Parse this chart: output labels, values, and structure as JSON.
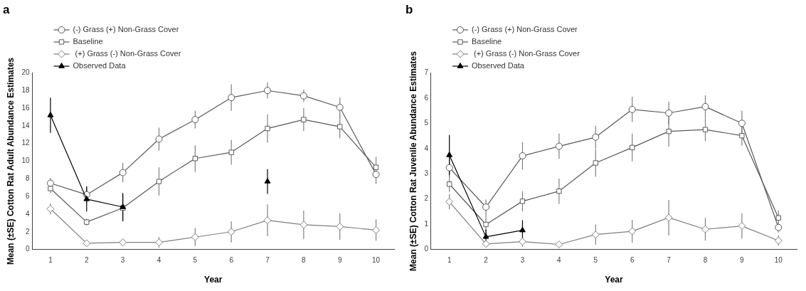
{
  "chart_data": [
    {
      "type": "line",
      "title": "a",
      "xlabel": "Year",
      "ylabel": "Mean (±SE) Cotton Rat Adult Abundance Estimates",
      "categories": [
        "1",
        "2",
        "3",
        "4",
        "5",
        "6",
        "7",
        "8",
        "9",
        "10"
      ],
      "ylim": [
        0,
        20
      ],
      "yticks": [
        0,
        2,
        4,
        6,
        8,
        10,
        12,
        14,
        16,
        18,
        20
      ],
      "grid": false,
      "legend": "top left",
      "series": [
        {
          "name": "(-) Grass (+) Non-Grass Cover",
          "color": "#595959",
          "marker": "circle",
          "values": [
            7.5,
            6.2,
            8.7,
            12.5,
            14.7,
            17.2,
            18.0,
            17.4,
            16.1,
            8.5
          ],
          "errors": [
            0.6,
            1.0,
            1.1,
            1.3,
            1.0,
            1.5,
            0.9,
            0.7,
            1.1,
            1.1
          ]
        },
        {
          "name": "Baseline",
          "color": "#595959",
          "marker": "square",
          "values": [
            6.9,
            3.1,
            4.7,
            7.7,
            10.3,
            11.0,
            13.7,
            14.7,
            13.9,
            9.3
          ],
          "errors": [
            0.5,
            0.4,
            1.5,
            1.6,
            1.5,
            1.4,
            1.6,
            1.3,
            1.3,
            1.2
          ]
        },
        {
          "name": " (+) Grass (-) Non-Grass Cover",
          "color": "#7f7f7f",
          "marker": "diamond",
          "values": [
            4.6,
            0.7,
            0.8,
            0.8,
            1.4,
            2.0,
            3.3,
            2.8,
            2.6,
            2.2
          ],
          "errors": [
            0.6,
            0.1,
            0.3,
            0.6,
            1.0,
            1.2,
            1.8,
            1.6,
            1.5,
            1.2
          ]
        },
        {
          "name": "Observed Data",
          "color": "#000000",
          "marker": "triangle",
          "values": [
            15.2,
            5.7,
            4.8,
            null,
            null,
            null,
            7.7,
            null,
            null,
            null
          ],
          "errors": [
            2.0,
            1.4,
            1.6,
            null,
            null,
            null,
            1.4,
            null,
            null,
            null
          ]
        }
      ]
    },
    {
      "type": "line",
      "title": "b",
      "xlabel": "Year",
      "ylabel": "Mean (±SE) Cotton Rat Juvenile Abundance Estimates",
      "categories": [
        "1",
        "2",
        "3",
        "4",
        "5",
        "6",
        "7",
        "8",
        "9",
        "10"
      ],
      "ylim": [
        0,
        7
      ],
      "yticks": [
        0,
        1,
        2,
        3,
        4,
        5,
        6,
        7
      ],
      "grid": false,
      "legend": "top left",
      "series": [
        {
          "name": "(-) Grass (+) Non-Grass Cover",
          "color": "#595959",
          "marker": "circle",
          "values": [
            3.24,
            1.68,
            3.71,
            4.09,
            4.45,
            5.55,
            5.41,
            5.66,
            5.0,
            0.87
          ],
          "errors": [
            0.4,
            0.3,
            0.55,
            0.5,
            0.45,
            0.5,
            0.45,
            0.45,
            0.5,
            0.2
          ]
        },
        {
          "name": "Baseline",
          "color": "#595959",
          "marker": "square",
          "values": [
            2.59,
            0.99,
            1.91,
            2.31,
            3.43,
            4.04,
            4.68,
            4.75,
            4.51,
            1.25
          ],
          "errors": [
            0.3,
            0.4,
            0.4,
            0.5,
            0.55,
            0.55,
            0.6,
            0.45,
            0.4,
            0.3
          ]
        },
        {
          "name": " (+) Grass (-) Non-Grass Cover",
          "color": "#7f7f7f",
          "marker": "diamond",
          "values": [
            1.89,
            0.22,
            0.31,
            0.2,
            0.59,
            0.72,
            1.26,
            0.8,
            0.93,
            0.35
          ],
          "errors": [
            0.3,
            0.1,
            0.2,
            0.1,
            0.4,
            0.45,
            0.7,
            0.45,
            0.5,
            0.2
          ]
        },
        {
          "name": "Observed Data",
          "color": "#000000",
          "marker": "triangle",
          "values": [
            3.74,
            0.5,
            0.76,
            null,
            null,
            null,
            null,
            null,
            null,
            null
          ],
          "errors": [
            0.8,
            0.3,
            0.4,
            null,
            null,
            null,
            null,
            null,
            null,
            null
          ]
        }
      ]
    }
  ]
}
